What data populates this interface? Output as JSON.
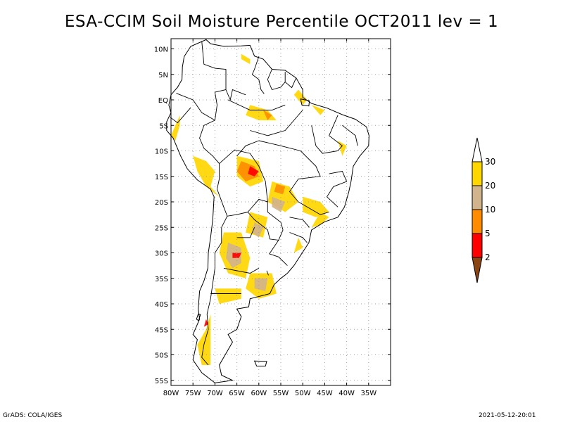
{
  "title": "ESA-CCIM Soil Moisture Percentile OCT2011 lev = 1",
  "footer": {
    "left": "GrADS: COLA/IGES",
    "right": "2021-05-12-20:01"
  },
  "map": {
    "lon_range": [
      -80,
      -30
    ],
    "lat_range": [
      -56,
      12
    ],
    "lon_ticks": [
      {
        "value": -80,
        "label": "80W"
      },
      {
        "value": -75,
        "label": "75W"
      },
      {
        "value": -70,
        "label": "70W"
      },
      {
        "value": -65,
        "label": "65W"
      },
      {
        "value": -60,
        "label": "60W"
      },
      {
        "value": -55,
        "label": "55W"
      },
      {
        "value": -50,
        "label": "50W"
      },
      {
        "value": -45,
        "label": "45W"
      },
      {
        "value": -40,
        "label": "40W"
      },
      {
        "value": -35,
        "label": "35W"
      }
    ],
    "lat_ticks": [
      {
        "value": 10,
        "label": "10N"
      },
      {
        "value": 5,
        "label": "5N"
      },
      {
        "value": 0,
        "label": "EQ"
      },
      {
        "value": -5,
        "label": "5S"
      },
      {
        "value": -10,
        "label": "10S"
      },
      {
        "value": -15,
        "label": "15S"
      },
      {
        "value": -20,
        "label": "20S"
      },
      {
        "value": -25,
        "label": "25S"
      },
      {
        "value": -30,
        "label": "30S"
      },
      {
        "value": -35,
        "label": "35S"
      },
      {
        "value": -40,
        "label": "40S"
      },
      {
        "value": -45,
        "label": "45S"
      },
      {
        "value": -50,
        "label": "50S"
      },
      {
        "value": -55,
        "label": "55S"
      }
    ],
    "grid": true
  },
  "colorbar": {
    "levels": [
      "2",
      "5",
      "10",
      "20",
      "30"
    ],
    "colors": {
      "below_2": "#8b4513",
      "2_5": "#ff0000",
      "5_10": "#ff8c00",
      "10_20": "#d2b48c",
      "20_30": "#ffd700",
      "above_30": "#ffffff"
    }
  },
  "colors": {
    "coast": "#000000",
    "grid": "#a0a0a0",
    "yellow": "#ffd700",
    "tan": "#d2b48c",
    "orange": "#ff8c00",
    "red": "#ff0000",
    "brown": "#8b4513"
  }
}
